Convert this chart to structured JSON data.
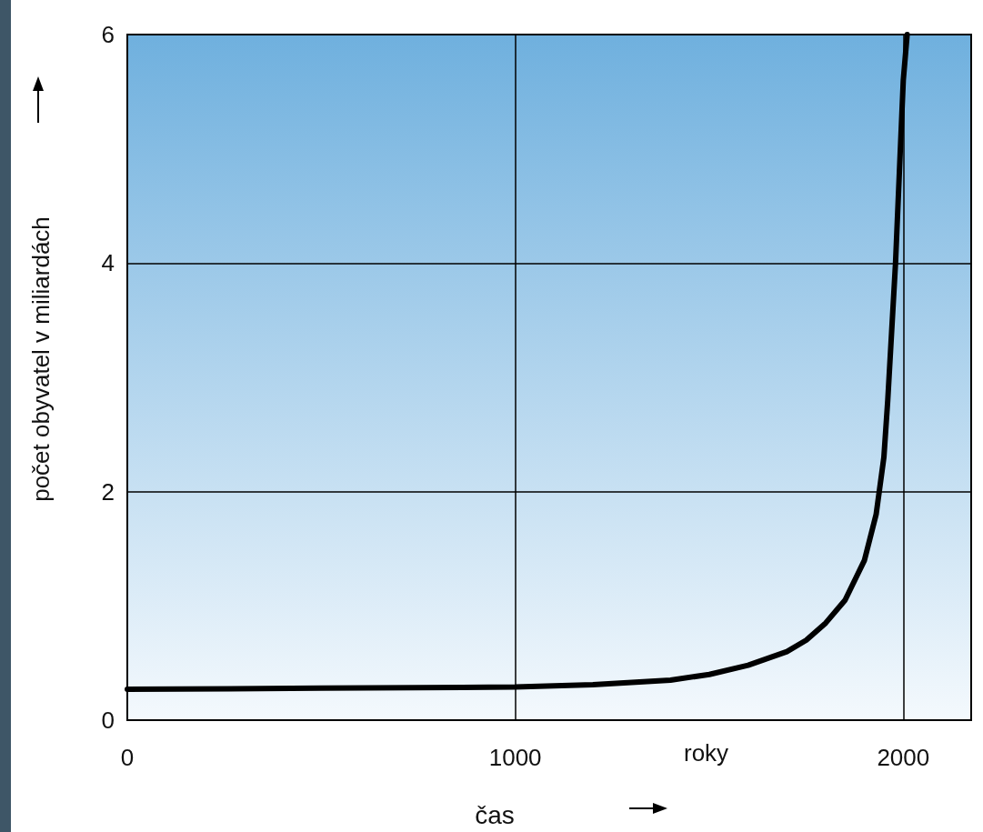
{
  "chart_data": {
    "type": "line",
    "xlabel": "čas",
    "ylabel": "počet obyvatel v miliardách",
    "annotations": [
      "roky"
    ],
    "x": [
      0,
      500,
      1000,
      1200,
      1400,
      1500,
      1600,
      1700,
      1750,
      1800,
      1850,
      1900,
      1930,
      1950,
      1960,
      1970,
      1980,
      1990,
      2000,
      2010
    ],
    "series": [
      {
        "color": "#000000",
        "values": [
          0.27,
          0.28,
          0.29,
          0.31,
          0.35,
          0.4,
          0.48,
          0.6,
          0.7,
          0.85,
          1.05,
          1.4,
          1.8,
          2.3,
          2.8,
          3.4,
          4.0,
          4.8,
          5.6,
          6.0
        ]
      }
    ],
    "xlim": [
      0,
      2175
    ],
    "xticks": [
      0,
      1000,
      2000
    ],
    "ylim": [
      0,
      6
    ],
    "yticks": [
      0,
      2,
      4,
      6
    ],
    "grid": true,
    "marker": "none",
    "line_style": "solid"
  }
}
